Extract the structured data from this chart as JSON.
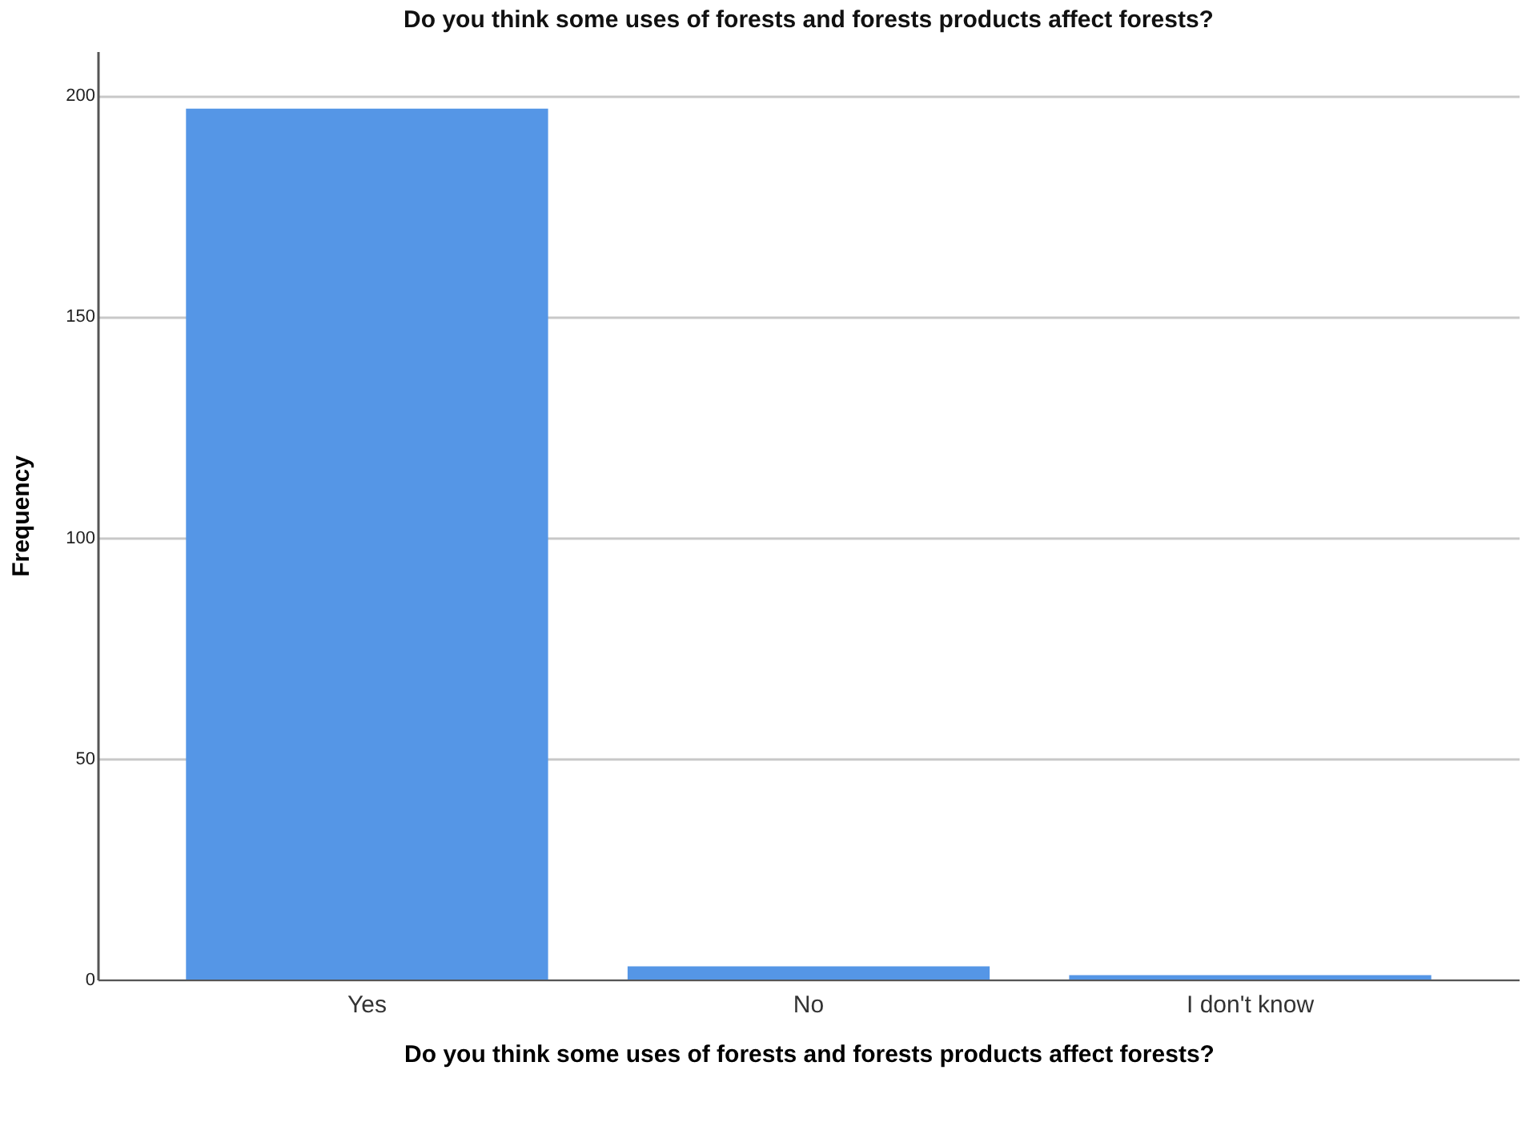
{
  "chart_data": {
    "type": "bar",
    "title": "Do you think some uses of forests and forests products affect forests?",
    "xlabel": "Do you think some uses of forests and forests products affect forests?",
    "ylabel": "Frequency",
    "categories": [
      "Yes",
      "No",
      "I don't know"
    ],
    "values": [
      197,
      3,
      1
    ],
    "color": "#5596e6",
    "ylim": [
      0,
      210
    ],
    "yticks": [
      0,
      50,
      100,
      150,
      200
    ],
    "grid": "y"
  }
}
